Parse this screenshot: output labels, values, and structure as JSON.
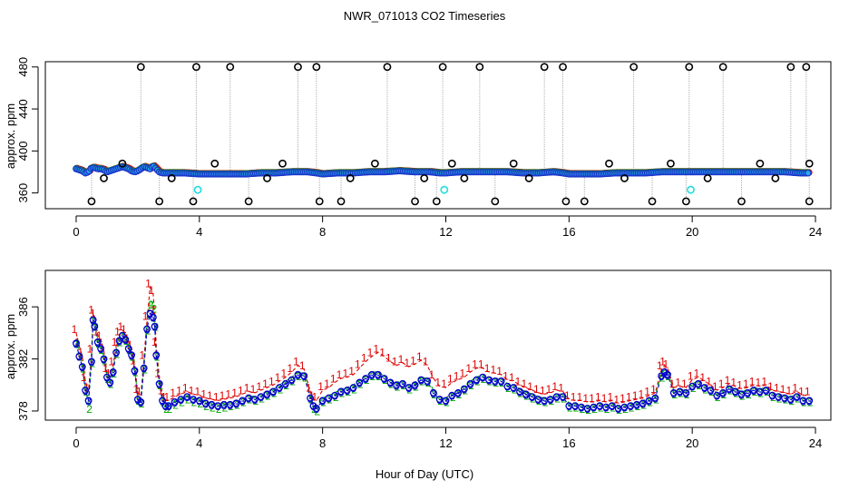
{
  "figure": {
    "title": "NWR_071013  CO2 Timeseries",
    "shared_xlabel": "Hour of Day (UTC)"
  },
  "colors": {
    "flag_black": "#000000",
    "flag_cyan": "#22dddd",
    "drop_line": "#999999",
    "series1": "#dd0000",
    "series2": "#00aa00",
    "series3": "#0000cc",
    "point_fill": "#2aa7ee",
    "point_stroke": "#1a33cc"
  },
  "chart_data": [
    {
      "type": "scatter",
      "name": "full-timeseries",
      "ylabel": "approx. ppm",
      "xlim": [
        -1,
        24.5
      ],
      "ylim": [
        345,
        485
      ],
      "xticks": [
        0,
        4,
        8,
        12,
        16,
        20,
        24
      ],
      "yticks": [
        360,
        400,
        440,
        480
      ],
      "baseline": {
        "x": [
          0.0,
          0.1,
          0.2,
          0.3,
          0.4,
          0.5,
          0.6,
          0.7,
          0.8,
          0.9,
          1.0,
          1.1,
          1.2,
          1.3,
          1.4,
          1.5,
          1.6,
          1.7,
          1.8,
          1.9,
          2.0,
          2.1,
          2.2,
          2.3,
          2.4,
          2.5,
          2.6,
          2.7,
          2.8,
          2.9,
          3.0,
          3.5,
          4.0,
          4.5,
          5.0,
          5.5,
          6.0,
          6.5,
          7.0,
          7.5,
          7.8,
          8.0,
          8.5,
          9.0,
          9.5,
          10.0,
          10.5,
          11.0,
          11.5,
          11.8,
          12.0,
          12.5,
          13.0,
          13.5,
          14.0,
          14.5,
          15.0,
          15.5,
          15.8,
          16.0,
          16.5,
          17.0,
          17.5,
          18.0,
          18.5,
          19.0,
          19.5,
          19.8,
          20.0,
          20.5,
          21.0,
          21.5,
          22.0,
          22.5,
          23.0,
          23.5,
          23.8
        ],
        "y": [
          383,
          382,
          381,
          379,
          380,
          384,
          384,
          383,
          383,
          382,
          380,
          381,
          382,
          383,
          384,
          385,
          384,
          383,
          381,
          380,
          381,
          383,
          385,
          384,
          383,
          386,
          383,
          380,
          379,
          379,
          379,
          379,
          378,
          378,
          378,
          378,
          379,
          379,
          380,
          380,
          379,
          378,
          379,
          379,
          380,
          380,
          381,
          380,
          380,
          379,
          379,
          380,
          380,
          380,
          380,
          379,
          379,
          380,
          379,
          378,
          378,
          378,
          379,
          379,
          379,
          380,
          380,
          380,
          380,
          380,
          380,
          380,
          380,
          380,
          380,
          379,
          379
        ]
      },
      "flags_high": [
        2.1,
        3.9,
        5.0,
        7.2,
        7.8,
        10.1,
        11.9,
        13.1,
        15.2,
        15.8,
        18.1,
        19.9,
        21.0,
        23.2,
        23.7
      ],
      "flags_low": [
        0.5,
        2.7,
        3.8,
        5.6,
        7.9,
        8.6,
        11.0,
        11.7,
        13.6,
        15.9,
        16.5,
        18.7,
        19.8,
        21.6,
        23.8
      ],
      "flags_mid": [
        0.9,
        1.5,
        3.1,
        4.5,
        6.2,
        6.7,
        8.9,
        9.7,
        11.3,
        12.2,
        12.6,
        14.2,
        14.7,
        17.3,
        17.8,
        19.3,
        20.5,
        22.2,
        22.7,
        23.8
      ],
      "flags_cyan": [
        3.95,
        11.95,
        19.95
      ]
    },
    {
      "type": "scatter",
      "name": "zoomed-timeseries",
      "ylabel": "approx. ppm",
      "xlim": [
        -1,
        24.5
      ],
      "ylim": [
        377.3,
        388.8
      ],
      "xticks": [
        0,
        4,
        8,
        12,
        16,
        20,
        24
      ],
      "yticks": [
        378,
        382,
        386
      ],
      "series_labels": [
        "1",
        "2",
        "3"
      ],
      "x": [
        0.0,
        0.1,
        0.2,
        0.3,
        0.4,
        0.5,
        0.55,
        0.6,
        0.7,
        0.8,
        0.9,
        1.0,
        1.1,
        1.2,
        1.3,
        1.4,
        1.5,
        1.6,
        1.7,
        1.8,
        1.9,
        2.0,
        2.1,
        2.2,
        2.3,
        2.4,
        2.5,
        2.55,
        2.6,
        2.7,
        2.8,
        2.9,
        3.0,
        3.2,
        3.4,
        3.6,
        3.8,
        4.0,
        4.2,
        4.4,
        4.6,
        4.8,
        5.0,
        5.2,
        5.4,
        5.6,
        5.8,
        6.0,
        6.2,
        6.4,
        6.6,
        6.8,
        7.0,
        7.2,
        7.4,
        7.6,
        7.7,
        7.8,
        8.0,
        8.2,
        8.4,
        8.6,
        8.8,
        9.0,
        9.2,
        9.4,
        9.6,
        9.8,
        10.0,
        10.2,
        10.4,
        10.6,
        10.8,
        11.0,
        11.2,
        11.4,
        11.6,
        11.8,
        12.0,
        12.2,
        12.4,
        12.6,
        12.8,
        13.0,
        13.2,
        13.4,
        13.6,
        13.8,
        14.0,
        14.2,
        14.4,
        14.6,
        14.8,
        15.0,
        15.2,
        15.4,
        15.6,
        15.8,
        16.0,
        16.2,
        16.4,
        16.6,
        16.8,
        17.0,
        17.2,
        17.4,
        17.6,
        17.8,
        18.0,
        18.2,
        18.4,
        18.6,
        18.8,
        19.0,
        19.1,
        19.2,
        19.4,
        19.6,
        19.8,
        20.0,
        20.2,
        20.4,
        20.6,
        20.8,
        21.0,
        21.2,
        21.4,
        21.6,
        21.8,
        22.0,
        22.2,
        22.4,
        22.6,
        22.8,
        23.0,
        23.2,
        23.4,
        23.6,
        23.8
      ],
      "series": [
        {
          "name": "1",
          "values": [
            384.0,
            383.0,
            382.2,
            380.3,
            379.5,
            382.5,
            385.5,
            385.2,
            383.8,
            383.5,
            382.6,
            381.0,
            380.6,
            381.5,
            383.0,
            383.8,
            384.2,
            384.0,
            383.3,
            382.8,
            381.6,
            379.4,
            379.2,
            382.0,
            385.0,
            387.5,
            387.0,
            385.5,
            383.0,
            380.6,
            379.3,
            378.8,
            378.8,
            379.1,
            379.3,
            379.5,
            379.3,
            379.2,
            379.0,
            378.9,
            378.8,
            378.9,
            379.0,
            379.1,
            379.3,
            379.5,
            379.4,
            379.6,
            379.8,
            380.0,
            380.3,
            380.6,
            381.0,
            381.5,
            381.2,
            379.5,
            378.9,
            378.8,
            379.6,
            379.8,
            380.2,
            380.5,
            380.6,
            380.8,
            381.3,
            381.8,
            382.2,
            382.5,
            382.2,
            381.8,
            381.5,
            381.7,
            381.4,
            381.6,
            381.9,
            381.5,
            380.5,
            379.9,
            379.8,
            380.2,
            380.4,
            380.6,
            381.0,
            381.3,
            381.3,
            381.0,
            380.9,
            380.8,
            380.4,
            380.3,
            380.0,
            379.8,
            379.6,
            379.4,
            379.3,
            379.4,
            379.6,
            379.5,
            378.9,
            378.8,
            378.8,
            378.7,
            378.7,
            378.8,
            378.7,
            378.8,
            378.6,
            378.7,
            378.8,
            378.9,
            379.0,
            379.2,
            379.4,
            381.2,
            381.5,
            381.3,
            379.8,
            379.9,
            379.8,
            380.4,
            380.6,
            380.3,
            380.0,
            379.6,
            379.8,
            380.1,
            379.9,
            379.7,
            379.8,
            380.0,
            379.9,
            380.0,
            379.6,
            379.5,
            379.4,
            379.3,
            379.5,
            379.2,
            379.2
          ]
        },
        {
          "name": "2",
          "values": [
            383.5,
            382.5,
            381.6,
            379.8,
            378.5,
            382.0,
            385.2,
            384.8,
            383.5,
            383.0,
            382.2,
            380.8,
            380.4,
            381.2,
            382.7,
            383.6,
            384.0,
            383.7,
            383.0,
            382.5,
            381.3,
            379.1,
            378.9,
            381.5,
            384.5,
            386.5,
            386.2,
            384.8,
            382.5,
            380.3,
            379.0,
            378.5,
            378.5,
            378.8,
            379.0,
            379.2,
            379.0,
            378.9,
            378.7,
            378.6,
            378.5,
            378.6,
            378.7,
            378.8,
            379.0,
            379.2,
            379.1,
            379.3,
            379.5,
            379.7,
            380.0,
            380.3,
            380.6,
            381.0,
            380.9,
            379.2,
            378.5,
            378.3,
            379.0,
            379.2,
            379.4,
            379.7,
            379.8,
            380.0,
            380.4,
            380.7,
            381.0,
            381.0,
            380.7,
            380.4,
            380.2,
            380.3,
            380.0,
            380.2,
            380.6,
            380.5,
            379.6,
            379.1,
            379.0,
            379.4,
            379.6,
            379.9,
            380.3,
            380.6,
            380.8,
            380.6,
            380.5,
            380.5,
            380.1,
            380.0,
            379.7,
            379.5,
            379.3,
            379.1,
            379.0,
            379.1,
            379.3,
            379.3,
            378.6,
            378.6,
            378.5,
            378.4,
            378.5,
            378.6,
            378.5,
            378.6,
            378.4,
            378.5,
            378.6,
            378.7,
            378.8,
            379.0,
            379.2,
            380.9,
            381.2,
            381.0,
            379.6,
            379.7,
            379.6,
            380.1,
            380.3,
            380.0,
            379.8,
            379.4,
            379.6,
            379.9,
            379.7,
            379.5,
            379.6,
            379.8,
            379.7,
            379.8,
            379.4,
            379.3,
            379.2,
            379.1,
            379.3,
            379.0,
            379.0
          ]
        },
        {
          "name": "3",
          "values": [
            383.2,
            382.2,
            381.4,
            379.6,
            378.8,
            381.8,
            385.0,
            384.5,
            383.3,
            382.8,
            382.0,
            380.6,
            380.2,
            381.0,
            382.5,
            383.4,
            383.8,
            383.5,
            382.8,
            382.3,
            381.1,
            378.9,
            378.7,
            381.3,
            384.3,
            385.5,
            385.2,
            384.5,
            382.3,
            380.1,
            378.8,
            378.4,
            378.4,
            378.7,
            378.9,
            379.1,
            378.9,
            378.8,
            378.6,
            378.5,
            378.4,
            378.5,
            378.5,
            378.6,
            378.8,
            379.0,
            378.9,
            379.1,
            379.3,
            379.5,
            379.8,
            380.1,
            380.4,
            380.8,
            380.7,
            379.0,
            378.4,
            378.2,
            378.8,
            379.0,
            379.2,
            379.5,
            379.6,
            379.8,
            380.2,
            380.5,
            380.8,
            380.8,
            380.5,
            380.2,
            380.0,
            380.1,
            379.8,
            380.0,
            380.4,
            380.3,
            379.4,
            378.9,
            378.8,
            379.2,
            379.4,
            379.7,
            380.1,
            380.4,
            380.6,
            380.4,
            380.3,
            380.3,
            379.9,
            379.8,
            379.5,
            379.3,
            379.1,
            378.9,
            378.8,
            378.9,
            379.1,
            379.1,
            378.4,
            378.4,
            378.3,
            378.2,
            378.3,
            378.4,
            378.3,
            378.4,
            378.2,
            378.3,
            378.4,
            378.5,
            378.6,
            378.8,
            379.0,
            380.7,
            381.0,
            380.8,
            379.4,
            379.5,
            379.4,
            379.9,
            380.1,
            379.8,
            379.6,
            379.2,
            379.4,
            379.7,
            379.5,
            379.3,
            379.4,
            379.6,
            379.5,
            379.6,
            379.2,
            379.1,
            379.0,
            378.9,
            379.1,
            378.8,
            378.8
          ]
        }
      ]
    }
  ]
}
